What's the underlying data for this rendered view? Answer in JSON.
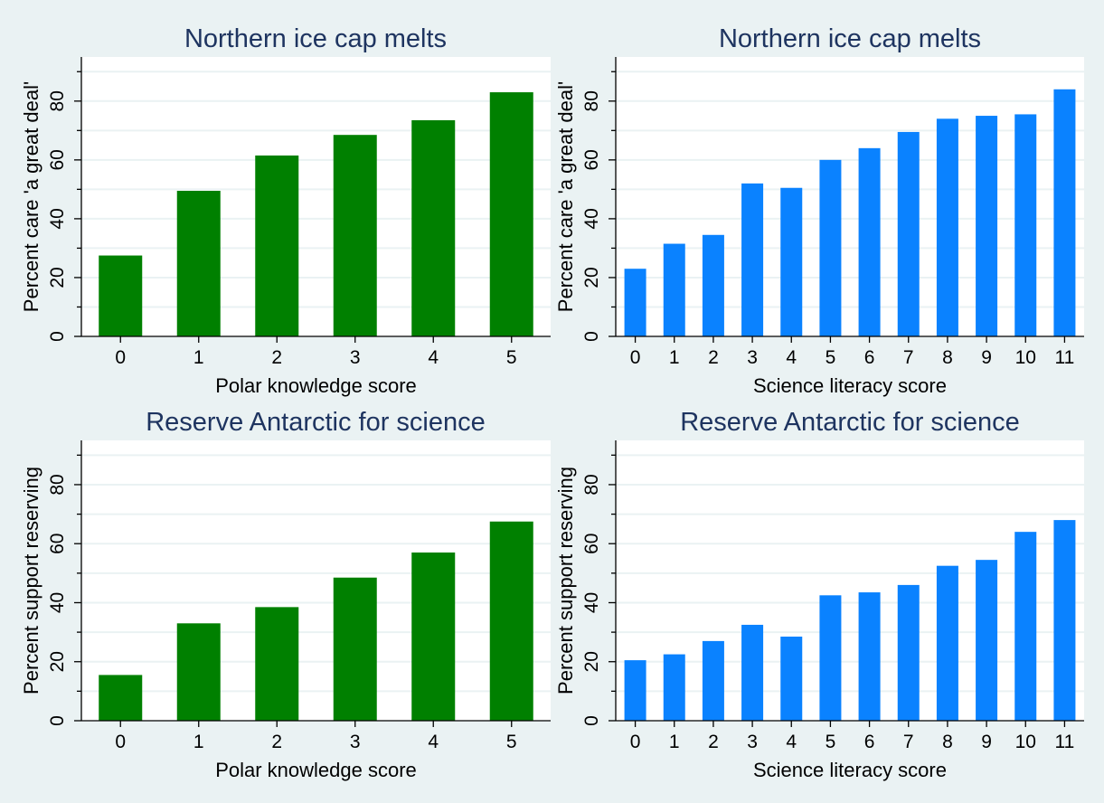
{
  "chart_data": [
    {
      "type": "bar",
      "title": "Northern ice cap melts",
      "xlabel": "Polar knowledge score",
      "ylabel": "Percent care 'a great deal'",
      "categories": [
        "0",
        "1",
        "2",
        "3",
        "4",
        "5"
      ],
      "values": [
        27.5,
        49.5,
        61.5,
        68.5,
        73.5,
        83
      ],
      "ylim": [
        0,
        95
      ],
      "yticks": [
        "0",
        "20",
        "40",
        "60",
        "80"
      ],
      "color": "#008000",
      "grid": true
    },
    {
      "type": "bar",
      "title": "Northern ice cap melts",
      "xlabel": "Science literacy score",
      "ylabel": "Percent care 'a great deal'",
      "categories": [
        "0",
        "1",
        "2",
        "3",
        "4",
        "5",
        "6",
        "7",
        "8",
        "9",
        "10",
        "11"
      ],
      "values": [
        23,
        31.5,
        34.5,
        52,
        50.5,
        60,
        64,
        69.5,
        74,
        75,
        75.5,
        84
      ],
      "ylim": [
        0,
        95
      ],
      "yticks": [
        "0",
        "20",
        "40",
        "60",
        "80"
      ],
      "color": "#0a82ff",
      "grid": true
    },
    {
      "type": "bar",
      "title": "Reserve Antarctic for science",
      "xlabel": "Polar knowledge score",
      "ylabel": "Percent support reserving",
      "categories": [
        "0",
        "1",
        "2",
        "3",
        "4",
        "5"
      ],
      "values": [
        15.5,
        33,
        38.5,
        48.5,
        57,
        67.5
      ],
      "ylim": [
        0,
        95
      ],
      "yticks": [
        "0",
        "20",
        "40",
        "60",
        "80"
      ],
      "color": "#008000",
      "grid": true
    },
    {
      "type": "bar",
      "title": "Reserve Antarctic for science",
      "xlabel": "Science literacy score",
      "ylabel": "Percent support reserving",
      "categories": [
        "0",
        "1",
        "2",
        "3",
        "4",
        "5",
        "6",
        "7",
        "8",
        "9",
        "10",
        "11"
      ],
      "values": [
        20.5,
        22.5,
        27,
        32.5,
        28.5,
        42.5,
        43.5,
        46,
        52.5,
        54.5,
        64,
        68
      ],
      "ylim": [
        0,
        95
      ],
      "yticks": [
        "0",
        "20",
        "40",
        "60",
        "80"
      ],
      "color": "#0a82ff",
      "grid": true
    }
  ]
}
